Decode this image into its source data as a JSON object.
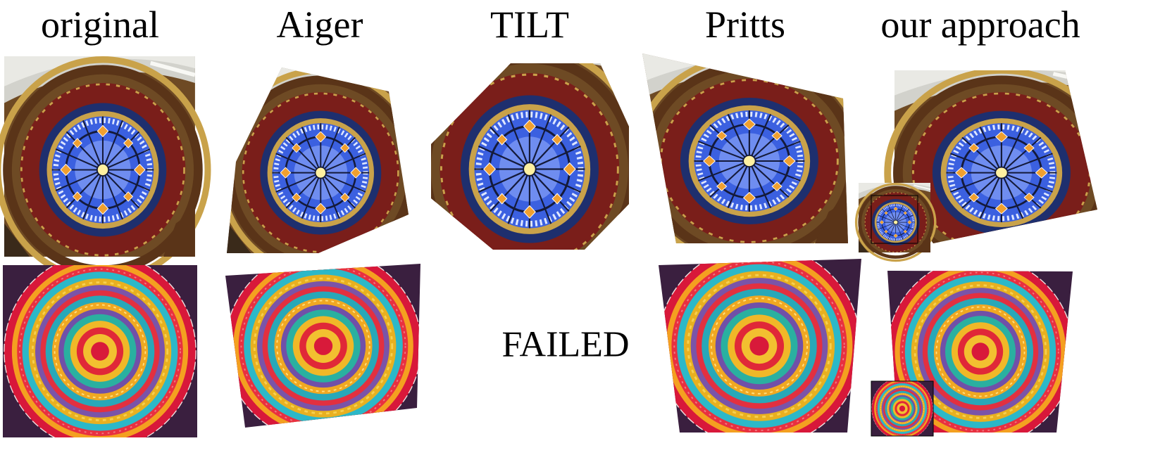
{
  "headers": {
    "original": "original",
    "aiger": "Aiger",
    "tilt": "TILT",
    "pritts": "Pritts",
    "ours": "our approach"
  },
  "failed_label": "FAILED",
  "palette": {
    "window": {
      "ceiling": "#d2d2cc",
      "outer_bg": "#6e4a24",
      "arch": "#7a1e1a",
      "gold_trim": "#c9a24a",
      "dark_blue": "#1e2f6e",
      "glass": "#3b60e0",
      "glass_light": "#dfe7ff",
      "lead": "#141a3a",
      "amber": "#f0a030",
      "center": "#fff0a0"
    },
    "doily": {
      "background": "#3a1f3f",
      "rings": [
        "#d8183a",
        "#f4a020",
        "#e83040",
        "#2cb8c8",
        "#e8b020",
        "#7a54a8",
        "#e23040",
        "#28a8b8",
        "#f0a822",
        "#7050a8",
        "#2ab0a0",
        "#f0b828",
        "#e02838",
        "#f2c030",
        "#d81a3a"
      ]
    }
  }
}
